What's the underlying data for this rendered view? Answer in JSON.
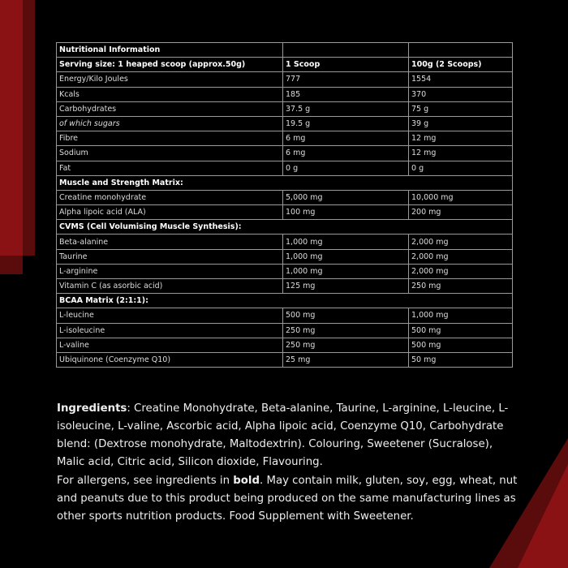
{
  "colors": {
    "background": "#000000",
    "red": "#8b1214",
    "dark_red": "#5a0b0c"
  },
  "table": {
    "rows": [
      {
        "type": "section",
        "label": "Nutritional Information",
        "v1": "",
        "v2": ""
      },
      {
        "type": "header",
        "label": "Serving size: 1 heaped scoop (approx.50g)",
        "v1": "1 Scoop",
        "v2": "100g (2 Scoops)"
      },
      {
        "type": "row",
        "label": "Energy/Kilo Joules",
        "v1": "777",
        "v2": "1554"
      },
      {
        "type": "row",
        "label": "Kcals",
        "v1": "185",
        "v2": "370"
      },
      {
        "type": "row",
        "label": "Carbohydrates",
        "v1": "37.5 g",
        "v2": "75 g"
      },
      {
        "type": "italic",
        "label": "of which sugars",
        "v1": "19.5 g",
        "v2": "39 g"
      },
      {
        "type": "row",
        "label": "Fibre",
        "v1": "6 mg",
        "v2": "12 mg"
      },
      {
        "type": "row",
        "label": "Sodium",
        "v1": "6 mg",
        "v2": "12 mg"
      },
      {
        "type": "row",
        "label": "Fat",
        "v1": "0 g",
        "v2": "0 g"
      },
      {
        "type": "span",
        "label": "Muscle and Strength Matrix:"
      },
      {
        "type": "row",
        "label": "Creatine monohydrate",
        "v1": "5,000 mg",
        "v2": "10,000 mg"
      },
      {
        "type": "row",
        "label": "Alpha lipoic acid (ALA)",
        "v1": "100 mg",
        "v2": "200 mg"
      },
      {
        "type": "span",
        "label": "CVMS (Cell Volumising Muscle Synthesis):"
      },
      {
        "type": "row",
        "label": "Beta-alanine",
        "v1": "1,000 mg",
        "v2": "2,000 mg"
      },
      {
        "type": "row",
        "label": "Taurine",
        "v1": "1,000 mg",
        "v2": "2,000 mg"
      },
      {
        "type": "row",
        "label": "L-arginine",
        "v1": "1,000 mg",
        "v2": "2,000 mg"
      },
      {
        "type": "row",
        "label": "Vitamin C (as asorbic acid)",
        "v1": "125 mg",
        "v2": "250 mg"
      },
      {
        "type": "span",
        "label": "BCAA Matrix (2:1:1):"
      },
      {
        "type": "row",
        "label": "L-leucine",
        "v1": "500 mg",
        "v2": "1,000 mg"
      },
      {
        "type": "row",
        "label": "L-isoleucine",
        "v1": "250 mg",
        "v2": "500 mg"
      },
      {
        "type": "row",
        "label": "L-valine",
        "v1": "250 mg",
        "v2": "500 mg"
      },
      {
        "type": "row",
        "label": "Ubiquinone (Coenzyme Q10)",
        "v1": "25 mg",
        "v2": "50 mg"
      }
    ]
  },
  "ingredients": {
    "label": "Ingredients",
    "text": ": Creatine Monohydrate, Beta-alanine, Taurine, L-arginine, L-leucine, L-isoleucine, L-valine, Ascorbic acid, Alpha lipoic acid, Coenzyme Q10, Carbohydrate blend: (Dextrose monohydrate, Maltodextrin). Colouring, Sweetener (Sucralose), Malic acid, Citric acid, Silicon dioxide, Flavouring."
  },
  "allergens": {
    "before": "For allergens, see ingredients in ",
    "bold": "bold",
    "after": ". May contain milk, gluten, soy, egg, wheat, nut and peanuts due to this product being produced on the same manufacturing lines as other sports nutrition products. Food Supplement with Sweetener."
  }
}
